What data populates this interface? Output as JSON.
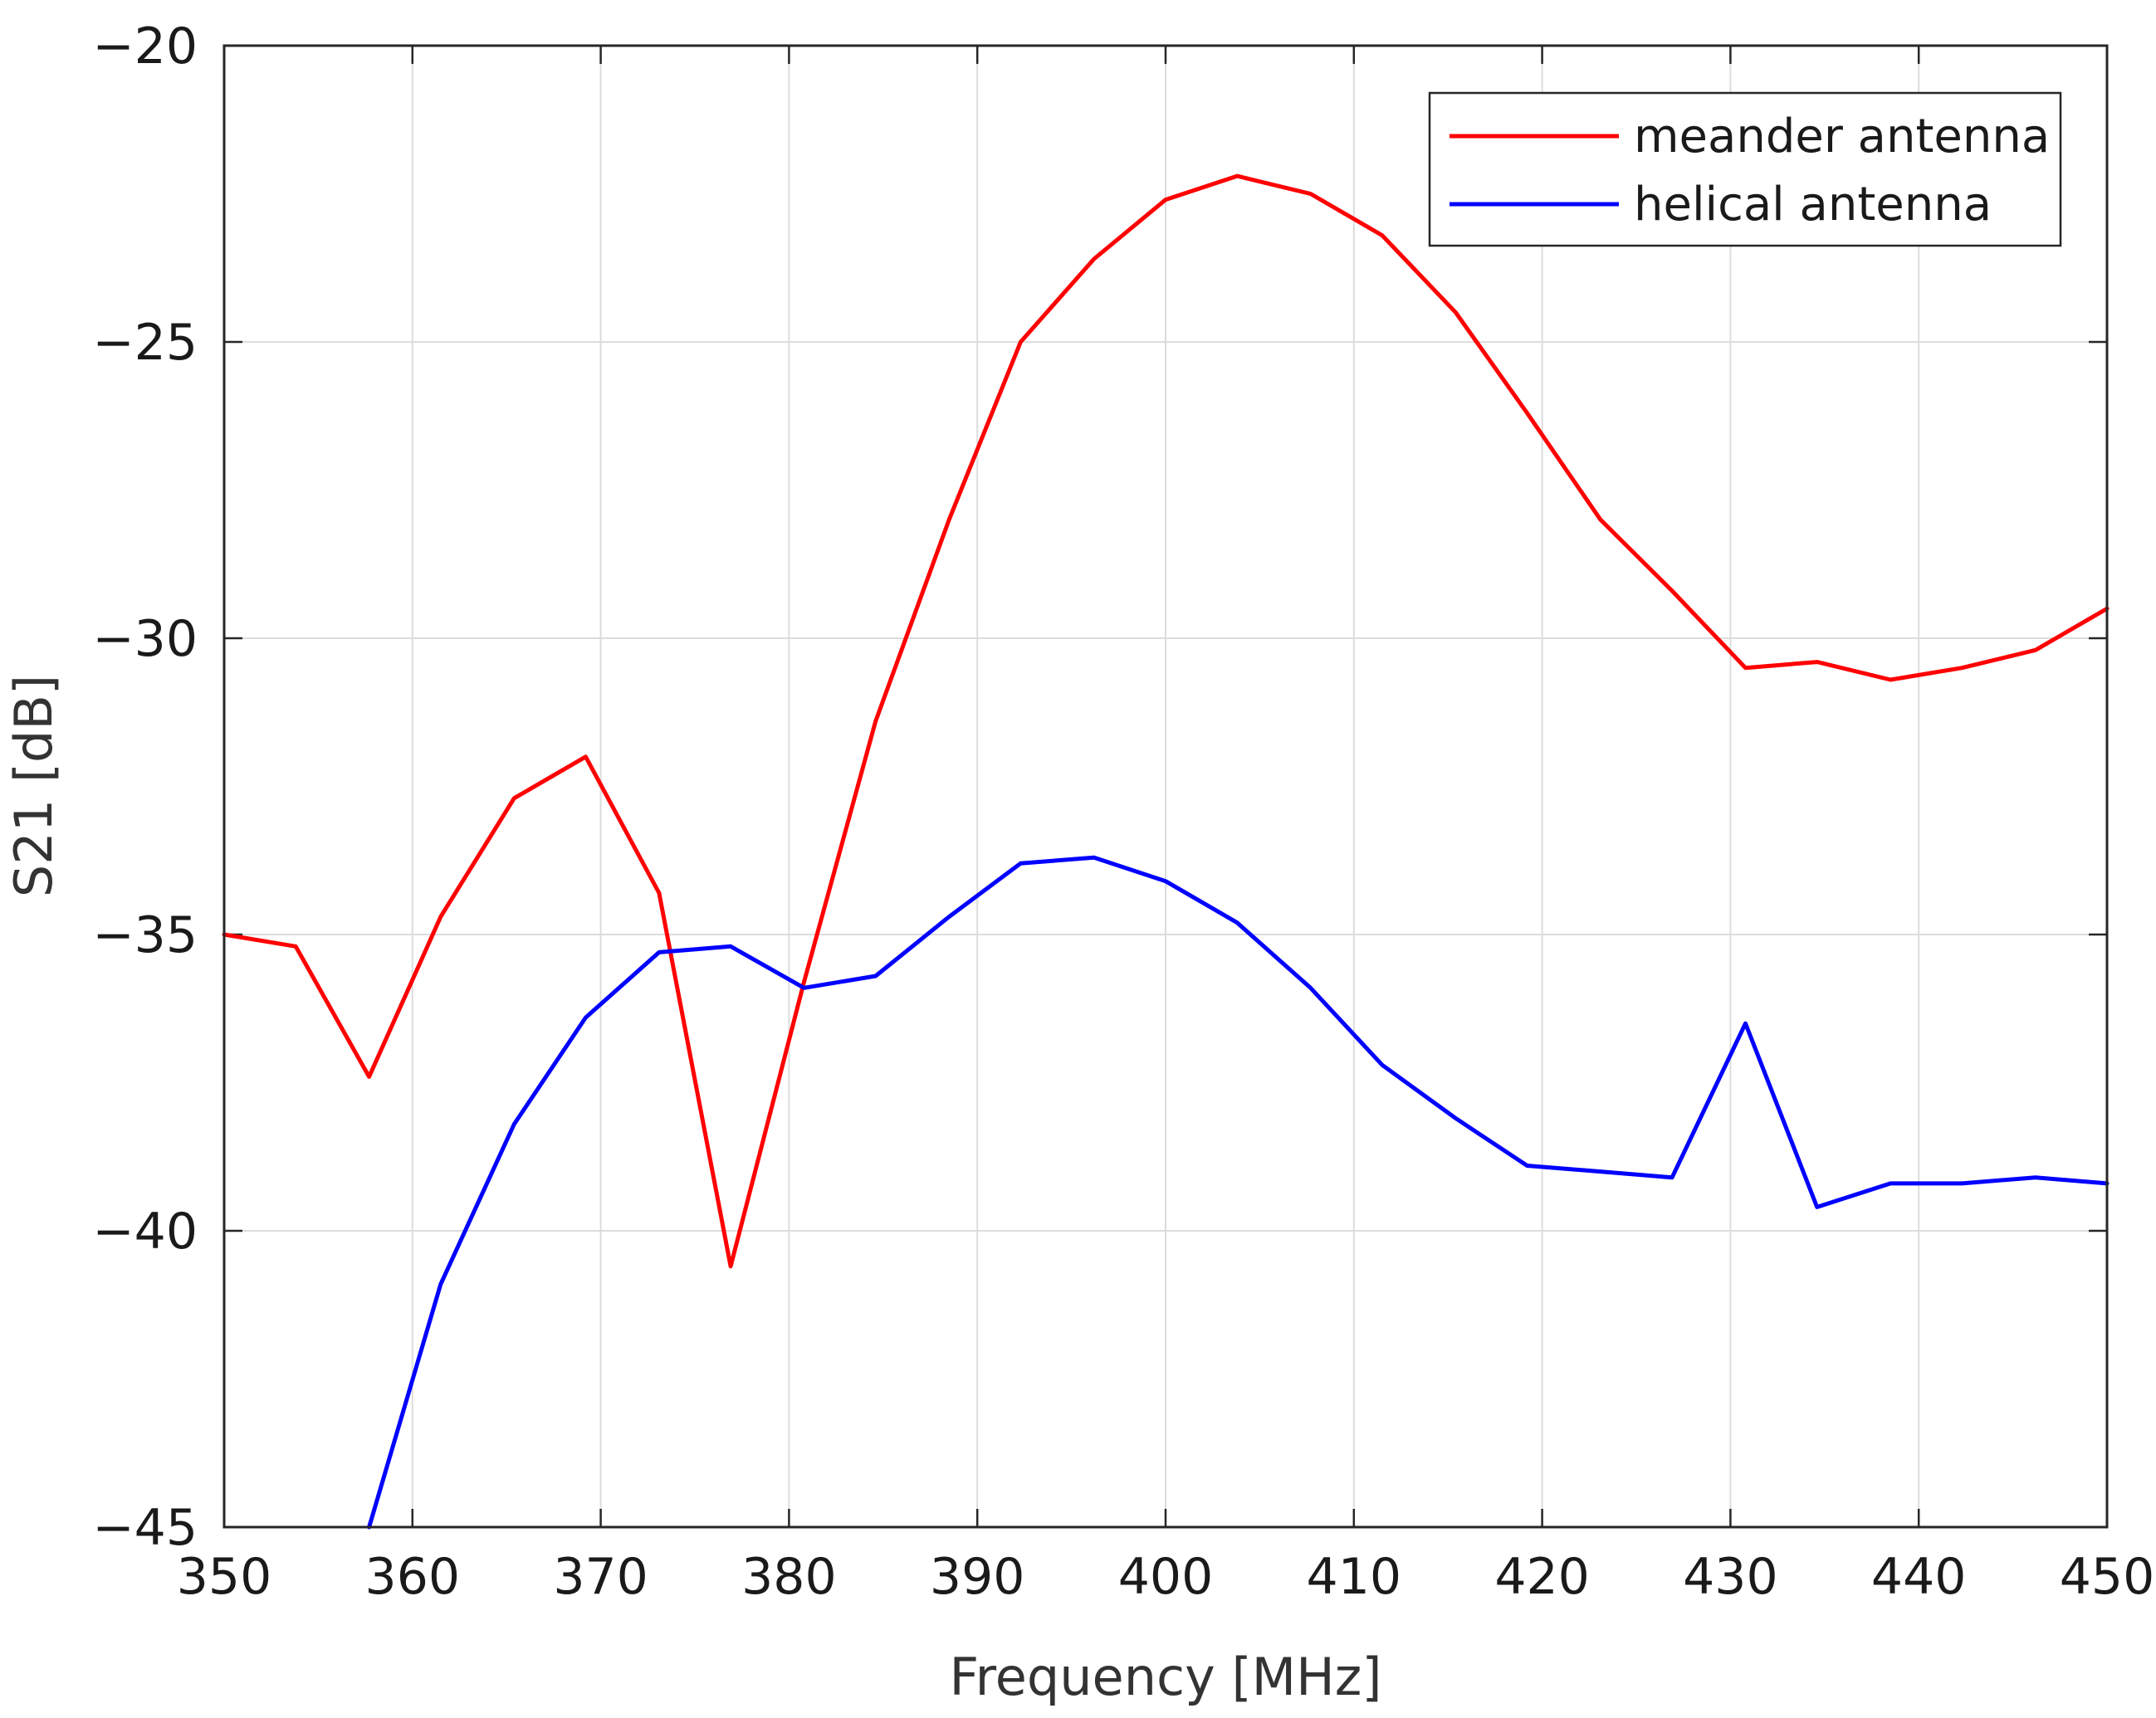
{
  "chart_data": {
    "type": "line",
    "title": "",
    "xlabel": "Frequency [MHz]",
    "ylabel": "S21 [dB]",
    "xlim": [
      350,
      450
    ],
    "ylim": [
      -45,
      -20
    ],
    "xticks": [
      350,
      360,
      370,
      380,
      390,
      400,
      410,
      420,
      430,
      440,
      450
    ],
    "yticks": [
      -20,
      -25,
      -30,
      -35,
      -40,
      -45
    ],
    "grid": true,
    "legend_position": "top-right",
    "series": [
      {
        "name": "meander antenna",
        "color": "#ff0000",
        "x": [
          350,
          353.8,
          357.7,
          361.5,
          365.4,
          369.2,
          373.1,
          376.9,
          380.8,
          384.6,
          388.5,
          392.3,
          396.2,
          400,
          403.8,
          407.7,
          411.5,
          415.4,
          419.2,
          423.1,
          426.9,
          430.8,
          434.6,
          438.5,
          442.3,
          446.2,
          450
        ],
        "y": [
          -35.0,
          -35.2,
          -37.4,
          -34.7,
          -32.7,
          -32.0,
          -34.3,
          -40.6,
          -35.8,
          -31.4,
          -28.0,
          -25.0,
          -23.6,
          -22.6,
          -22.2,
          -22.5,
          -23.2,
          -24.5,
          -26.2,
          -28.0,
          -29.2,
          -30.5,
          -30.4,
          -30.7,
          -30.5,
          -30.2,
          -29.5
        ]
      },
      {
        "name": "helical antenna",
        "color": "#0000ff",
        "x": [
          357.7,
          361.5,
          365.4,
          369.2,
          373.1,
          376.9,
          380.8,
          384.6,
          388.5,
          392.3,
          396.2,
          400,
          403.8,
          407.7,
          411.5,
          415.4,
          419.2,
          423.1,
          426.9,
          430.8,
          434.6,
          438.5,
          442.3,
          446.2,
          450
        ],
        "y": [
          -45.0,
          -40.9,
          -38.2,
          -36.4,
          -35.3,
          -35.2,
          -35.9,
          -35.7,
          -34.7,
          -33.8,
          -33.7,
          -34.1,
          -34.8,
          -35.9,
          -37.2,
          -38.1,
          -38.9,
          -39.0,
          -39.1,
          -36.5,
          -39.6,
          -39.2,
          -39.2,
          -39.1,
          -39.2
        ]
      }
    ]
  }
}
